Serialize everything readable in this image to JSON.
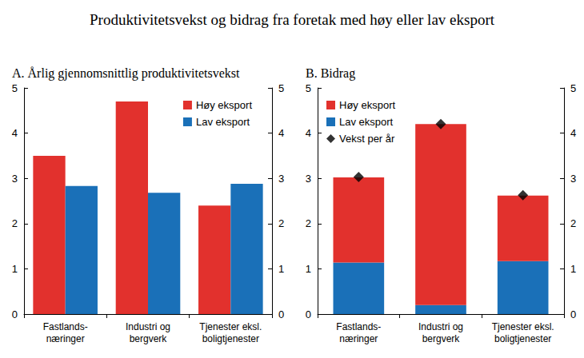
{
  "chart_data": [
    {
      "type": "bar",
      "title": "Produktivitetsvekst og bidrag fra foretak med høy eller lav eksport",
      "subtitle": "A. Årlig gjennomsnittlig produktivitetsvekst",
      "categories": [
        "Fastlands-\nnæringer",
        "Industri og\nbergverk",
        "Tjenester eksl.\nboligtjenester"
      ],
      "series": [
        {
          "name": "Høy eksport",
          "color": "#e2312d",
          "values": [
            3.5,
            4.7,
            2.4
          ]
        },
        {
          "name": "Lav eksport",
          "color": "#1a70b8",
          "values": [
            2.83,
            2.68,
            2.88
          ]
        }
      ],
      "ylim": [
        0,
        5
      ],
      "yticks": [
        0,
        1,
        2,
        3,
        4,
        5
      ],
      "grid": false,
      "legend": "upper right",
      "stacked": false
    },
    {
      "type": "bar",
      "subtitle": "B. Bidrag",
      "categories": [
        "Fastlands-\nnæringer",
        "Industri og\nbergverk",
        "Tjenester eksl.\nboligtjenester"
      ],
      "series": [
        {
          "name": "Høy eksport",
          "color": "#e2312d",
          "values": [
            1.88,
            4.0,
            1.45
          ]
        },
        {
          "name": "Lav eksport",
          "color": "#1a70b8",
          "values": [
            1.14,
            0.2,
            1.17
          ]
        },
        {
          "name": "Vekst per år",
          "color": "#000000",
          "type": "scatter",
          "marker": "diamond",
          "values": [
            3.03,
            4.2,
            2.63
          ]
        }
      ],
      "ylim": [
        0,
        5
      ],
      "yticks": [
        0,
        1,
        2,
        3,
        4,
        5
      ],
      "grid": false,
      "legend": "upper left",
      "stacked": true
    }
  ]
}
